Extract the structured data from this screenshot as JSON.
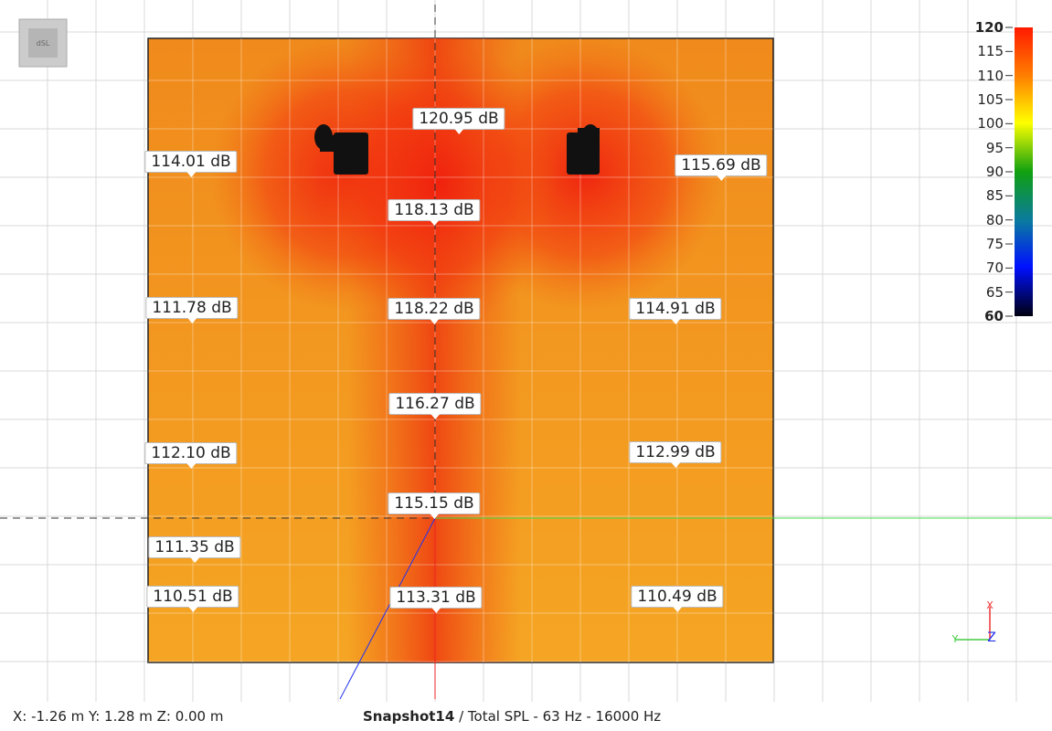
{
  "logo": "dSL",
  "labels": [
    "120.95 dB",
    "114.01 dB",
    "115.69 dB",
    "118.13 dB",
    "111.78 dB",
    "118.22 dB",
    "114.91 dB",
    "116.27 dB",
    "112.10 dB",
    "112.99 dB",
    "115.15 dB",
    "111.35 dB",
    "110.51 dB",
    "113.31 dB",
    "110.49 dB"
  ],
  "colorbar": {
    "ticks": [
      120,
      115,
      110,
      105,
      100,
      95,
      90,
      85,
      80,
      75,
      70,
      65,
      60
    ]
  },
  "gizmo": {
    "x": "X",
    "y": "Y",
    "z": "Z"
  },
  "status": {
    "coords": "X: -1.26 m Y: 1.28 m Z: 0.00 m",
    "snapshot": "Snapshot14",
    "description": "/ Total SPL - 63 Hz - 16000 Hz"
  }
}
